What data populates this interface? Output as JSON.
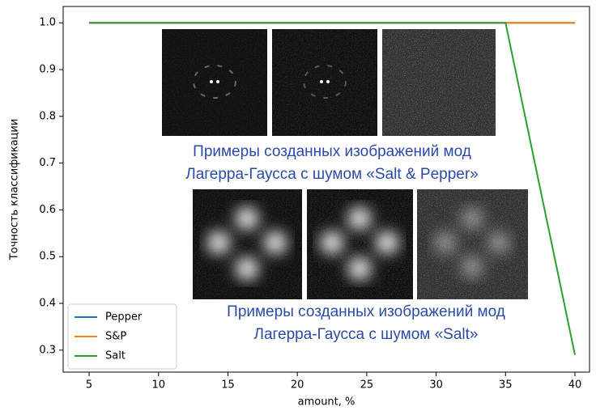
{
  "chart_data": {
    "type": "line",
    "x_label": "amount, %",
    "y_label": "Точность классификации",
    "x": [
      5,
      10,
      15,
      20,
      25,
      30,
      35,
      40
    ],
    "series": [
      {
        "name": "Pepper",
        "color": "#1f77b4",
        "values": [
          1.0,
          1.0,
          1.0,
          1.0,
          1.0,
          1.0,
          1.0,
          1.0
        ]
      },
      {
        "name": "S&P",
        "color": "#ff7f0e",
        "values": [
          1.0,
          1.0,
          1.0,
          1.0,
          1.0,
          1.0,
          1.0,
          1.0
        ]
      },
      {
        "name": "Salt",
        "color": "#2ca02c",
        "values": [
          1.0,
          1.0,
          1.0,
          1.0,
          1.0,
          1.0,
          1.0,
          0.29
        ]
      }
    ],
    "xlim": [
      3.13,
      41.05
    ],
    "ylim": [
      0.253,
      1.035
    ],
    "xticks": [
      5,
      10,
      15,
      20,
      25,
      30,
      35,
      40
    ],
    "yticks": [
      {
        "value": 0.3,
        "label": "0.3"
      },
      {
        "value": 0.4,
        "label": "0.4"
      },
      {
        "value": 0.5,
        "label": "0.5"
      },
      {
        "value": 0.6,
        "label": "0.6"
      },
      {
        "value": 0.7,
        "label": "0.7"
      },
      {
        "value": 0.8,
        "label": "0.8"
      },
      {
        "value": 0.9,
        "label": "0.9"
      },
      {
        "value": 1.0,
        "label": "1.0"
      }
    ],
    "legend": "lower left",
    "annotations": [
      "Примеры созданных изображений мод",
      "Лагерра-Гаусса с шумом «Salt & Pepper»",
      "Примеры созданных изображений мод",
      "Лагерра-Гаусса с шумом «Salt»"
    ]
  }
}
